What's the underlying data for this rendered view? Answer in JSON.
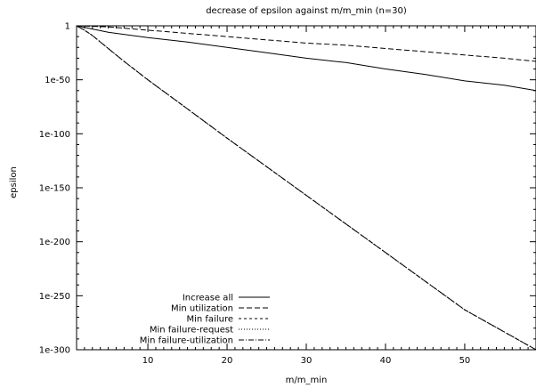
{
  "chart_data": {
    "type": "line",
    "title": "decrease of epsilon against m/m_min (n=30)",
    "xlabel": "m/m_min",
    "ylabel": "epsilon",
    "y_scale": "log",
    "xlim": [
      1,
      59
    ],
    "ylim_log10": [
      -300,
      0
    ],
    "x_ticks": [
      10,
      20,
      30,
      40,
      50
    ],
    "x_tick_labels": [
      "10",
      "20",
      "30",
      "40",
      "50"
    ],
    "y_ticks_log10": [
      0,
      -50,
      -100,
      -150,
      -200,
      -250,
      -300
    ],
    "y_tick_labels": [
      "1",
      "1e-50",
      "1e-100",
      "1e-150",
      "1e-200",
      "1e-250",
      "1e-300"
    ],
    "grid": false,
    "legend_position": "bottom-left",
    "series": [
      {
        "name": "Increase all",
        "dash": "solid",
        "x": [
          1,
          3,
          5,
          10,
          15,
          20,
          25,
          30,
          35,
          40,
          45,
          50,
          55,
          59
        ],
        "y_log10": [
          0,
          -3,
          -6,
          -11,
          -15,
          -20,
          -25,
          -30,
          -34,
          -40,
          -45,
          -51,
          -55,
          -60
        ]
      },
      {
        "name": "Min utilization",
        "dash": "6,3",
        "x": [
          1,
          5,
          10,
          15,
          20,
          25,
          30,
          35,
          40,
          45,
          50,
          55,
          59
        ],
        "y_log10": [
          0,
          -1,
          -4,
          -7,
          -10,
          -13,
          -16,
          -18,
          -21,
          -24,
          -27,
          -30,
          -33
        ]
      },
      {
        "name": "Min failure",
        "dash": "3,3",
        "x": [
          1,
          2,
          3,
          4,
          5,
          7,
          10,
          15,
          20,
          30,
          40,
          50,
          59
        ],
        "y_log10": [
          0,
          -4,
          -9,
          -15,
          -21,
          -33,
          -50,
          -77,
          -104,
          -157,
          -210,
          -263,
          -300
        ]
      },
      {
        "name": "Min failure-request",
        "dash": "1,2",
        "x": [
          1,
          2,
          3,
          4,
          5,
          7,
          10,
          15,
          20,
          30,
          40,
          50,
          59
        ],
        "y_log10": [
          0,
          -4,
          -9,
          -15,
          -21,
          -33,
          -50,
          -77,
          -104,
          -157,
          -210,
          -263,
          -300
        ]
      },
      {
        "name": "Min failure-utilization",
        "dash": "6,2,1,2",
        "x": [
          1,
          2,
          3,
          4,
          5,
          7,
          10,
          15,
          20,
          30,
          40,
          50,
          59
        ],
        "y_log10": [
          0,
          -4,
          -9,
          -15,
          -21,
          -33,
          -50,
          -77,
          -104,
          -157,
          -210,
          -263,
          -300
        ]
      }
    ]
  }
}
